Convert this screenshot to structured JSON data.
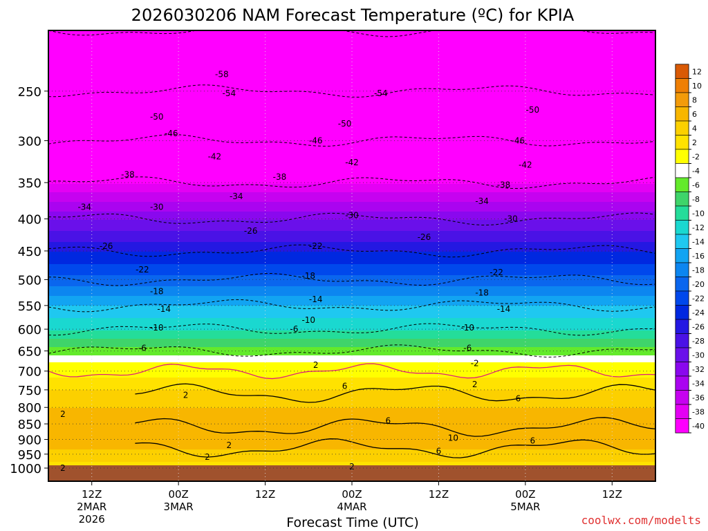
{
  "chart_data": {
    "type": "heatmap",
    "title": "2026030206 NAM Forecast Temperature (ºC) for KPIA",
    "xlabel": "Forecast Time (UTC)",
    "ylabel": "",
    "credit": "coolwx.com/modelts",
    "y_axis": {
      "scale": "pressure-log",
      "ylim": [
        1000,
        200
      ],
      "unit": "hPa",
      "ticks": [
        "250",
        "300",
        "350",
        "400",
        "450",
        "500",
        "550",
        "600",
        "650",
        "700",
        "750",
        "800",
        "850",
        "900",
        "950",
        "1000"
      ]
    },
    "x_axis": {
      "xlim_hours": [
        0,
        84
      ],
      "ticks": [
        {
          "hour": 6,
          "lines": [
            "12Z",
            "2MAR",
            "2026"
          ]
        },
        {
          "hour": 18,
          "lines": [
            "00Z",
            "3MAR"
          ]
        },
        {
          "hour": 30,
          "lines": [
            "12Z"
          ]
        },
        {
          "hour": 42,
          "lines": [
            "00Z",
            "4MAR"
          ]
        },
        {
          "hour": 54,
          "lines": [
            "12Z"
          ]
        },
        {
          "hour": 66,
          "lines": [
            "00Z",
            "5MAR"
          ]
        },
        {
          "hour": 78,
          "lines": [
            "12Z"
          ]
        }
      ]
    },
    "colorbar": {
      "levels": [
        "12",
        "10",
        "8",
        "6",
        "4",
        "2",
        "-2",
        "-4",
        "-6",
        "-8",
        "-10",
        "-12",
        "-14",
        "-16",
        "-18",
        "-20",
        "-22",
        "-24",
        "-26",
        "-28",
        "-30",
        "-32",
        "-34",
        "-36",
        "-38",
        "-40"
      ],
      "colors": [
        "#d95a05",
        "#ef7f04",
        "#f39b0a",
        "#f8b600",
        "#fcd000",
        "#ffe200",
        "#ffff00",
        "#ffffff",
        "#63ea2b",
        "#3fd46a",
        "#24dd9a",
        "#1ad8d0",
        "#1fc8f0",
        "#12a4f2",
        "#0c86f0",
        "#0a66ee",
        "#0048ec",
        "#0028e0",
        "#2418e2",
        "#4a12e6",
        "#6a10ea",
        "#8a08ee",
        "#aa04f0",
        "#c602f0",
        "#e400f4",
        "#ff00ff"
      ]
    },
    "temperature_profile": [
      {
        "p": 200,
        "t": -60
      },
      {
        "p": 250,
        "t": -54
      },
      {
        "p": 300,
        "t": -46
      },
      {
        "p": 350,
        "t": -38
      },
      {
        "p": 400,
        "t": -30
      },
      {
        "p": 450,
        "t": -24
      },
      {
        "p": 500,
        "t": -19
      },
      {
        "p": 550,
        "t": -14
      },
      {
        "p": 600,
        "t": -10
      },
      {
        "p": 650,
        "t": -5
      },
      {
        "p": 700,
        "t": 1
      },
      {
        "p": 750,
        "t": 4
      },
      {
        "p": 800,
        "t": 6
      },
      {
        "p": 850,
        "t": 7
      },
      {
        "p": 900,
        "t": 8
      },
      {
        "p": 950,
        "t": 5
      },
      {
        "p": 1000,
        "t": 3
      }
    ],
    "contour_labels": [
      {
        "text": "-58",
        "hour": 24,
        "p": 235
      },
      {
        "text": "-54",
        "hour": 25,
        "p": 252
      },
      {
        "text": "-54",
        "hour": 46,
        "p": 252
      },
      {
        "text": "-50",
        "hour": 15,
        "p": 275
      },
      {
        "text": "-50",
        "hour": 41,
        "p": 282
      },
      {
        "text": "-50",
        "hour": 67,
        "p": 268
      },
      {
        "text": "-46",
        "hour": 17,
        "p": 292
      },
      {
        "text": "-46",
        "hour": 37,
        "p": 300
      },
      {
        "text": "-46",
        "hour": 65,
        "p": 300
      },
      {
        "text": "-42",
        "hour": 23,
        "p": 318
      },
      {
        "text": "-42",
        "hour": 42,
        "p": 325
      },
      {
        "text": "-42",
        "hour": 66,
        "p": 328
      },
      {
        "text": "-38",
        "hour": 11,
        "p": 340
      },
      {
        "text": "-38",
        "hour": 32,
        "p": 343
      },
      {
        "text": "-38",
        "hour": 63,
        "p": 353
      },
      {
        "text": "-34",
        "hour": 5,
        "p": 383
      },
      {
        "text": "-34",
        "hour": 26,
        "p": 368
      },
      {
        "text": "-34",
        "hour": 60,
        "p": 375
      },
      {
        "text": "-30",
        "hour": 15,
        "p": 383
      },
      {
        "text": "-30",
        "hour": 42,
        "p": 395
      },
      {
        "text": "-30",
        "hour": 64,
        "p": 400
      },
      {
        "text": "-26",
        "hour": 8,
        "p": 442
      },
      {
        "text": "-26",
        "hour": 28,
        "p": 418
      },
      {
        "text": "-26",
        "hour": 52,
        "p": 428
      },
      {
        "text": "-22",
        "hour": 13,
        "p": 482
      },
      {
        "text": "-22",
        "hour": 37,
        "p": 442
      },
      {
        "text": "-22",
        "hour": 62,
        "p": 487
      },
      {
        "text": "-18",
        "hour": 15,
        "p": 522
      },
      {
        "text": "-18",
        "hour": 36,
        "p": 493
      },
      {
        "text": "-18",
        "hour": 60,
        "p": 525
      },
      {
        "text": "-14",
        "hour": 16,
        "p": 557
      },
      {
        "text": "-14",
        "hour": 37,
        "p": 538
      },
      {
        "text": "-14",
        "hour": 63,
        "p": 557
      },
      {
        "text": "-10",
        "hour": 15,
        "p": 597
      },
      {
        "text": "-10",
        "hour": 36,
        "p": 580
      },
      {
        "text": "-10",
        "hour": 58,
        "p": 597
      },
      {
        "text": "-6",
        "hour": 13,
        "p": 643
      },
      {
        "text": "-6",
        "hour": 34,
        "p": 600
      },
      {
        "text": "-6",
        "hour": 58,
        "p": 643
      },
      {
        "text": "-2",
        "hour": 59,
        "p": 680
      },
      {
        "text": "2",
        "hour": 37,
        "p": 685
      },
      {
        "text": "2",
        "hour": 59,
        "p": 735
      },
      {
        "text": "2",
        "hour": 19,
        "p": 765
      },
      {
        "text": "2",
        "hour": 22,
        "p": 960
      },
      {
        "text": "2",
        "hour": 25,
        "p": 920
      },
      {
        "text": "2",
        "hour": 2,
        "p": 820
      },
      {
        "text": "2",
        "hour": 2,
        "p": 1000
      },
      {
        "text": "2",
        "hour": 42,
        "p": 995
      },
      {
        "text": "6",
        "hour": 41,
        "p": 740
      },
      {
        "text": "6",
        "hour": 47,
        "p": 840
      },
      {
        "text": "6",
        "hour": 65,
        "p": 775
      },
      {
        "text": "6",
        "hour": 67,
        "p": 905
      },
      {
        "text": "6",
        "hour": 54,
        "p": 940
      },
      {
        "text": "10",
        "hour": 56,
        "p": 895
      }
    ]
  }
}
